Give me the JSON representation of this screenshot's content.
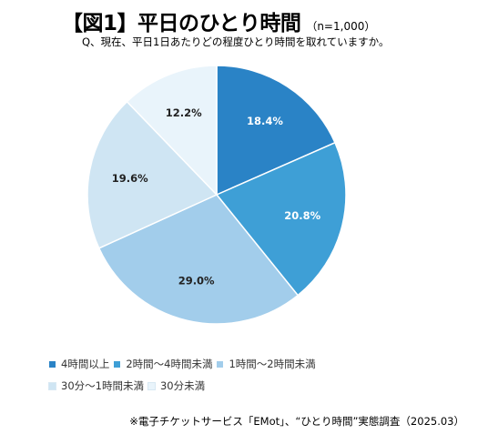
{
  "header": {
    "title": "【図1】平日のひとり時間",
    "sample_note": "（n=1,000）",
    "question": "Q、現在、平日1日あたりどの程度ひとり時間を取れていますか。"
  },
  "source_note": "※電子チケットサービス「EMot」、“ひとり時間”実態調査（2025.03）",
  "chart_data": {
    "type": "pie",
    "title": "【図1】平日のひとり時間",
    "subtitle": "Q、現在、平日1日あたりどの程度ひとり時間を取れていますか。",
    "legend_position": "bottom",
    "categories": [
      "4時間以上",
      "2時間～4時間未満",
      "1時間～2時間未満",
      "30分～1時間未満",
      "30分未満"
    ],
    "values": [
      18.4,
      20.8,
      29.0,
      19.6,
      12.2
    ],
    "labels": [
      "18.4%",
      "20.8%",
      "29.0%",
      "19.6%",
      "12.2%"
    ],
    "colors": [
      "#2A83C6",
      "#3E9FD6",
      "#A2CDEB",
      "#CFE5F3",
      "#E9F4FB"
    ],
    "label_colors": [
      "#ffffff",
      "#ffffff",
      "#222222",
      "#222222",
      "#222222"
    ],
    "start": "12 o'clock",
    "direction": "clockwise"
  },
  "legend": {
    "rows": [
      [
        0,
        1,
        2
      ],
      [
        3,
        4
      ]
    ]
  }
}
